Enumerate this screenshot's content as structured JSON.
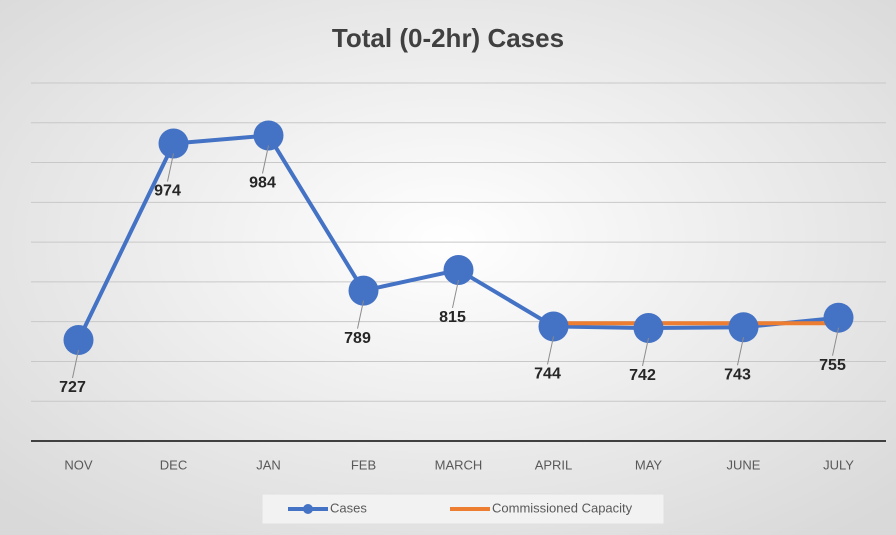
{
  "chart_data": {
    "type": "line",
    "title": "Total (0-2hr) Cases",
    "categories": [
      "NOV",
      "DEC",
      "JAN",
      "FEB",
      "MARCH",
      "APRIL",
      "MAY",
      "JUNE",
      "JULY"
    ],
    "series": [
      {
        "name": "Cases",
        "color": "#4472c4",
        "values": [
          727,
          974,
          984,
          789,
          815,
          744,
          742,
          743,
          755
        ]
      },
      {
        "name": "Commissioned Capacity",
        "color": "#ed7d31",
        "values": [
          null,
          null,
          null,
          null,
          null,
          748,
          748,
          748,
          748
        ]
      }
    ],
    "ylim": [
      600,
      1050
    ],
    "yticks": [
      600,
      650,
      700,
      750,
      800,
      850,
      900,
      950,
      1000,
      1050
    ],
    "grid": true,
    "legend": "bottom"
  }
}
